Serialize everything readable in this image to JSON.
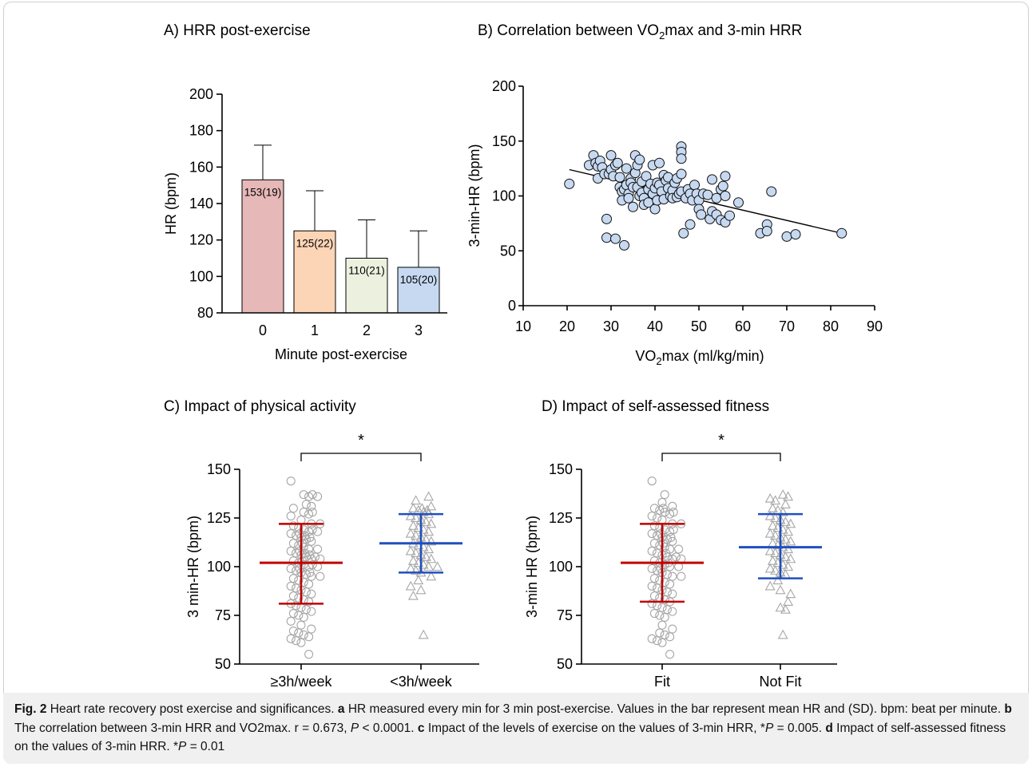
{
  "chart_data": [
    {
      "type": "bar",
      "panel": "A",
      "title": "A) HRR post-exercise",
      "xlabel": "Minute post-exercise",
      "ylabel": "HR (bpm)",
      "ylim": [
        80,
        200
      ],
      "yticks": [
        "80",
        "100",
        "120",
        "140",
        "160",
        "180",
        "200"
      ],
      "categories": [
        "0",
        "1",
        "2",
        "3"
      ],
      "values": [
        153,
        125,
        110,
        105
      ],
      "sd": [
        19,
        22,
        21,
        20
      ],
      "data_labels": [
        "153(19)",
        "125(22)",
        "110(21)",
        "105(20)"
      ],
      "colors": [
        "#e6b8b7",
        "#fbd5b5",
        "#ebf1de",
        "#c6d9f1"
      ],
      "grid": false
    },
    {
      "type": "scatter",
      "panel": "B",
      "title_prefix": "B) Correlation between VO",
      "title_sub": "2",
      "title_suffix": "max and 3-min HRR",
      "xlabel_prefix": "VO",
      "xlabel_sub": "2",
      "xlabel_suffix": "max (ml/kg/min)",
      "ylabel": "3-min-HR (bpm)",
      "xlim": [
        10,
        90
      ],
      "ylim": [
        0,
        200
      ],
      "xticks": [
        "10",
        "20",
        "30",
        "40",
        "50",
        "60",
        "70",
        "80",
        "90"
      ],
      "yticks": [
        "0",
        "50",
        "100",
        "150",
        "200"
      ],
      "marker_color": "#c6d9f1",
      "trendline": [
        [
          20.5,
          124
        ],
        [
          82.5,
          66
        ]
      ],
      "points": [
        [
          20.5,
          111
        ],
        [
          25,
          128
        ],
        [
          26,
          137
        ],
        [
          26.5,
          130
        ],
        [
          27,
          127
        ],
        [
          27,
          116
        ],
        [
          27.5,
          132
        ],
        [
          28,
          126
        ],
        [
          28.5,
          120
        ],
        [
          29,
          79
        ],
        [
          29,
          62
        ],
        [
          29.5,
          120
        ],
        [
          30,
          124
        ],
        [
          30,
          137
        ],
        [
          30.5,
          118
        ],
        [
          31,
          128
        ],
        [
          31,
          61
        ],
        [
          31.5,
          130
        ],
        [
          32,
          117
        ],
        [
          32,
          108
        ],
        [
          32.5,
          104
        ],
        [
          32.5,
          96
        ],
        [
          33,
          106
        ],
        [
          33,
          55
        ],
        [
          33.5,
          125
        ],
        [
          33.5,
          110
        ],
        [
          34,
          102
        ],
        [
          34,
          98
        ],
        [
          34.5,
          116
        ],
        [
          34.5,
          112
        ],
        [
          35,
          108
        ],
        [
          35,
          90
        ],
        [
          35.5,
          137
        ],
        [
          35.5,
          121
        ],
        [
          36,
          128
        ],
        [
          36,
          108
        ],
        [
          36.5,
          133
        ],
        [
          36.5,
          100
        ],
        [
          37,
          113
        ],
        [
          37,
          103
        ],
        [
          37.5,
          98
        ],
        [
          37.5,
          92
        ],
        [
          38,
          118
        ],
        [
          38.5,
          106
        ],
        [
          38.5,
          94
        ],
        [
          39,
          111
        ],
        [
          39.5,
          128
        ],
        [
          39.5,
          102
        ],
        [
          40,
          107
        ],
        [
          40,
          88
        ],
        [
          40.5,
          112
        ],
        [
          40.5,
          96
        ],
        [
          41,
          130
        ],
        [
          41,
          110
        ],
        [
          41.5,
          104
        ],
        [
          42,
          119
        ],
        [
          42,
          97
        ],
        [
          42.5,
          114
        ],
        [
          43,
          117
        ],
        [
          43,
          107
        ],
        [
          43.5,
          100
        ],
        [
          44,
          105
        ],
        [
          44,
          98
        ],
        [
          44.5,
          112
        ],
        [
          45,
          116
        ],
        [
          45,
          99
        ],
        [
          45.5,
          102
        ],
        [
          46,
          145
        ],
        [
          46,
          140
        ],
        [
          46,
          134
        ],
        [
          46,
          120
        ],
        [
          46,
          104
        ],
        [
          46.5,
          66
        ],
        [
          47,
          98
        ],
        [
          47.5,
          106
        ],
        [
          48,
          102
        ],
        [
          48,
          74
        ],
        [
          48.5,
          96
        ],
        [
          49,
          110
        ],
        [
          49.5,
          102
        ],
        [
          50,
          96
        ],
        [
          50,
          88
        ],
        [
          50.5,
          83
        ],
        [
          51,
          102
        ],
        [
          52,
          101
        ],
        [
          52.5,
          79
        ],
        [
          53,
          115
        ],
        [
          53,
          86
        ],
        [
          54,
          98
        ],
        [
          54,
          83
        ],
        [
          55,
          106
        ],
        [
          55,
          78
        ],
        [
          55.5,
          109
        ],
        [
          56,
          118
        ],
        [
          56,
          100
        ],
        [
          56,
          76
        ],
        [
          57,
          82
        ],
        [
          59,
          94
        ],
        [
          64,
          66
        ],
        [
          65.5,
          74
        ],
        [
          65.5,
          68
        ],
        [
          66.5,
          104
        ],
        [
          70,
          63
        ],
        [
          72,
          65
        ],
        [
          82.5,
          66
        ]
      ]
    },
    {
      "type": "scatter",
      "panel": "C",
      "title": "C) Impact of physical activity",
      "ylabel": "3 min-HR (bpm)",
      "ylim": [
        50,
        150
      ],
      "yticks": [
        "50",
        "75",
        "100",
        "125",
        "150"
      ],
      "categories": [
        "≥3h/week",
        "<3h/week"
      ],
      "significance": "*",
      "groups": [
        {
          "category": "≥3h/week",
          "marker": "circle",
          "mean": 102,
          "sd_low": 81,
          "sd_high": 122,
          "color": "#c00000",
          "points": [
            144,
            137,
            137,
            136,
            136,
            132,
            131,
            130,
            128,
            128,
            127,
            126,
            124,
            122,
            122,
            121,
            120,
            119,
            119,
            118,
            118,
            117,
            117,
            116,
            116,
            115,
            115,
            114,
            113,
            112,
            112,
            111,
            110,
            109,
            109,
            108,
            108,
            107,
            107,
            106,
            106,
            105,
            105,
            104,
            104,
            103,
            103,
            102,
            101,
            101,
            100,
            100,
            99,
            99,
            98,
            97,
            97,
            96,
            95,
            95,
            94,
            93,
            92,
            91,
            90,
            89,
            88,
            87,
            86,
            85,
            84,
            83,
            82,
            81,
            80,
            79,
            78,
            77,
            76,
            75,
            74,
            72,
            70,
            68,
            67,
            66,
            65,
            64,
            63,
            62,
            61,
            55
          ]
        },
        {
          "category": "<3h/week",
          "marker": "triangle",
          "mean": 112,
          "sd_low": 97,
          "sd_high": 127,
          "color": "#1f4fbf",
          "points": [
            136,
            134,
            131,
            130,
            130,
            129,
            129,
            128,
            127,
            126,
            125,
            124,
            123,
            122,
            121,
            120,
            119,
            118,
            117,
            116,
            115,
            114,
            113,
            112,
            111,
            110,
            109,
            108,
            107,
            106,
            105,
            104,
            103,
            102,
            101,
            100,
            100,
            99,
            98,
            97,
            95,
            93,
            90,
            88,
            85,
            65
          ]
        }
      ]
    },
    {
      "type": "scatter",
      "panel": "D",
      "title": "D) Impact of self-assessed fitness",
      "ylabel": "3-min HR (bpm)",
      "ylim": [
        50,
        150
      ],
      "yticks": [
        "50",
        "75",
        "100",
        "125",
        "150"
      ],
      "categories": [
        "Fit",
        "Not Fit"
      ],
      "significance": "*",
      "groups": [
        {
          "category": "Fit",
          "marker": "circle",
          "mean": 102,
          "sd_low": 82,
          "sd_high": 122,
          "color": "#c00000",
          "points": [
            144,
            137,
            133,
            131,
            130,
            130,
            129,
            128,
            128,
            127,
            126,
            125,
            124,
            122,
            122,
            121,
            120,
            119,
            119,
            118,
            117,
            117,
            116,
            115,
            115,
            114,
            113,
            112,
            112,
            111,
            110,
            109,
            109,
            108,
            107,
            107,
            106,
            105,
            105,
            104,
            104,
            103,
            102,
            102,
            101,
            100,
            100,
            99,
            99,
            98,
            97,
            96,
            95,
            95,
            94,
            93,
            92,
            91,
            90,
            89,
            88,
            87,
            86,
            85,
            84,
            83,
            82,
            81,
            80,
            79,
            78,
            77,
            76,
            75,
            74,
            70,
            68,
            66,
            65,
            64,
            63,
            62,
            61,
            55
          ]
        },
        {
          "category": "Not Fit",
          "marker": "triangle",
          "mean": 110,
          "sd_low": 94,
          "sd_high": 127,
          "color": "#1f4fbf",
          "points": [
            137,
            136,
            135,
            134,
            132,
            130,
            129,
            128,
            126,
            125,
            124,
            123,
            122,
            121,
            120,
            119,
            118,
            117,
            116,
            115,
            114,
            113,
            112,
            111,
            110,
            109,
            108,
            107,
            106,
            105,
            104,
            103,
            102,
            101,
            100,
            99,
            98,
            97,
            96,
            93,
            90,
            88,
            86,
            82,
            79,
            78,
            65
          ]
        }
      ]
    }
  ],
  "caption": {
    "fig_label": "Fig. 2",
    "intro": " Heart rate recovery post exercise and significances. ",
    "a_label": "a",
    "a_text": " HR measured every min for 3 min post-exercise. Values in the bar represent mean HR and (SD). bpm: beat per minute. ",
    "b_label": "b",
    "b_text": " The correlation between 3-min HRR and VO2max. r = 0.673, ",
    "b_p": "P",
    "b_p_text": " < 0.0001. ",
    "c_label": "c",
    "c_text": " Impact of the levels of exercise on the values of 3-min HRR, *",
    "c_p": "P",
    "c_p_text": " = 0.005. ",
    "d_label": "d",
    "d_text": " Impact of self-assessed fitness on the values of 3-min HRR. *",
    "d_p": "P",
    "d_p_text": " = 0.01"
  }
}
